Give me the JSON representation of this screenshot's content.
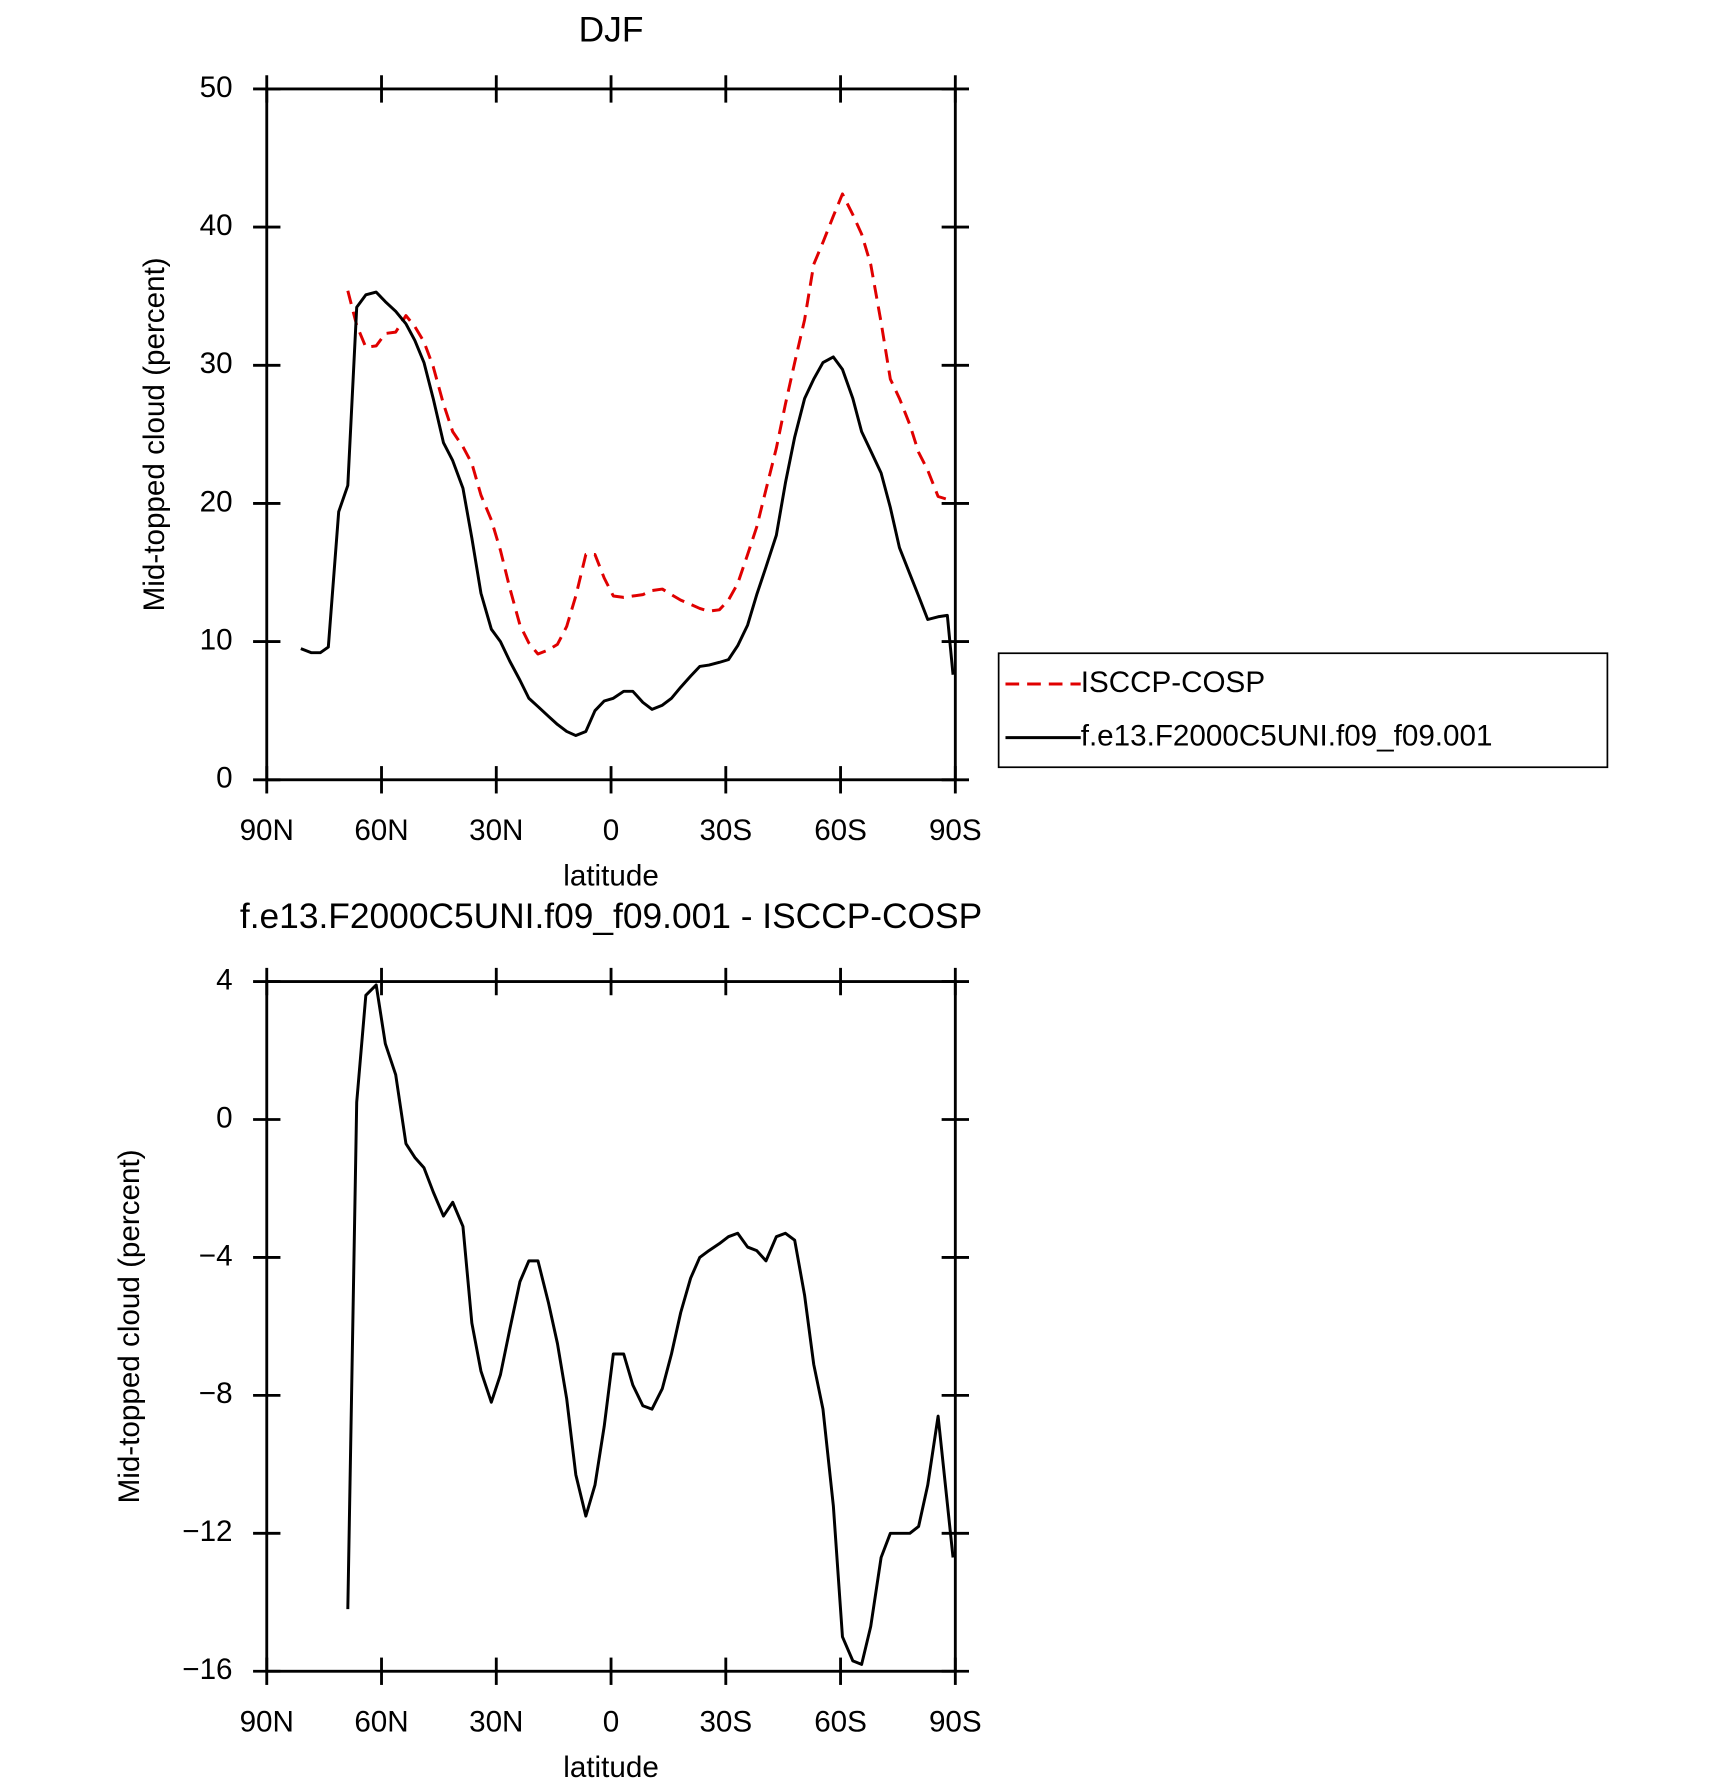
{
  "chart_data": [
    {
      "type": "line",
      "title": "DJF",
      "x_label": "latitude",
      "y_label": "Mid-topped cloud (percent)",
      "xlim": [
        90,
        -90
      ],
      "xticks": [
        {
          "value": 90,
          "label": "90N"
        },
        {
          "value": 60,
          "label": "60N"
        },
        {
          "value": 30,
          "label": "30N"
        },
        0,
        {
          "value": -30,
          "label": "30S"
        },
        {
          "value": -60,
          "label": "60S"
        },
        {
          "value": -90,
          "label": "90S"
        }
      ],
      "ylim": [
        0,
        50
      ],
      "yticks": [
        0,
        10,
        20,
        30,
        40,
        50
      ],
      "legend": "outside-right",
      "x": [
        81.1,
        78.4,
        76.0,
        73.9,
        71.2,
        68.8,
        66.5,
        64.1,
        61.4,
        59.0,
        56.3,
        53.6,
        51.3,
        48.9,
        46.5,
        43.8,
        41.4,
        38.7,
        36.4,
        34.0,
        31.3,
        28.9,
        26.5,
        23.8,
        21.5,
        19.1,
        16.4,
        14.0,
        11.6,
        9.2,
        6.6,
        4.2,
        1.8,
        -0.6,
        -3.3,
        -5.7,
        -8.3,
        -10.7,
        -13.4,
        -15.8,
        -18.2,
        -20.8,
        -23.2,
        -25.6,
        -28.3,
        -30.7,
        -33.1,
        -35.7,
        -38.1,
        -40.5,
        -43.2,
        -45.6,
        -48.0,
        -50.6,
        -53.0,
        -55.4,
        -58.1,
        -60.5,
        -63.2,
        -65.5,
        -67.9,
        -70.6,
        -73.0,
        -75.4,
        -78.1,
        -80.4,
        -82.8,
        -85.5,
        -87.9,
        -89.4
      ],
      "series": [
        {
          "name": "ISCCP-COSP",
          "color": "#e00000",
          "dash": true,
          "values": [
            null,
            null,
            null,
            null,
            null,
            35.4,
            32.9,
            31.3,
            31.4,
            32.3,
            32.4,
            33.6,
            32.8,
            31.7,
            29.9,
            27.2,
            25.2,
            24.1,
            22.9,
            20.6,
            18.8,
            16.6,
            13.9,
            11.2,
            9.9,
            9.1,
            9.4,
            9.8,
            11.1,
            13.3,
            16.3,
            16.3,
            14.6,
            13.3,
            13.2,
            13.3,
            13.4,
            13.7,
            13.8,
            13.4,
            13.0,
            12.7,
            12.4,
            12.2,
            12.3,
            13.0,
            14.2,
            16.3,
            18.3,
            21.0,
            24.0,
            27.2,
            30.2,
            33.3,
            37.3,
            38.9,
            40.8,
            42.4,
            40.9,
            39.5,
            37.3,
            33.1,
            29.0,
            27.6,
            25.7,
            23.7,
            22.4,
            20.5,
            20.3,
            20.1
          ]
        },
        {
          "name": "f.e13.F2000C5UNI.f09_f09.001",
          "color": "#000000",
          "dash": false,
          "values": [
            9.5,
            9.2,
            9.2,
            9.6,
            19.4,
            21.3,
            34.2,
            35.1,
            35.3,
            34.6,
            33.9,
            33.0,
            31.8,
            30.2,
            27.6,
            24.4,
            23.1,
            21.1,
            17.5,
            13.5,
            10.9,
            10.0,
            8.6,
            7.2,
            5.9,
            5.3,
            4.6,
            4.0,
            3.5,
            3.2,
            3.5,
            5.0,
            5.7,
            5.9,
            6.4,
            6.4,
            5.6,
            5.1,
            5.4,
            5.9,
            6.7,
            7.5,
            8.2,
            8.3,
            8.5,
            8.7,
            9.7,
            11.2,
            13.4,
            15.4,
            17.7,
            21.5,
            24.8,
            27.6,
            29.0,
            30.2,
            30.6,
            29.7,
            27.6,
            25.2,
            23.8,
            22.2,
            19.7,
            16.8,
            14.9,
            13.3,
            11.6,
            11.8,
            11.9,
            7.6
          ]
        }
      ]
    },
    {
      "type": "line",
      "title": "f.e13.F2000C5UNI.f09_f09.001 - ISCCP-COSP",
      "x_label": "latitude",
      "y_label": "Mid-topped cloud (percent)",
      "xlim": [
        90,
        -90
      ],
      "xticks": [
        {
          "value": 90,
          "label": "90N"
        },
        {
          "value": 60,
          "label": "60N"
        },
        {
          "value": 30,
          "label": "30N"
        },
        0,
        {
          "value": -30,
          "label": "30S"
        },
        {
          "value": -60,
          "label": "60S"
        },
        {
          "value": -90,
          "label": "90S"
        }
      ],
      "ylim": [
        -16,
        4
      ],
      "yticks": [
        {
          "value": -16,
          "label": "−16"
        },
        {
          "value": -12,
          "label": "−12"
        },
        {
          "value": -8,
          "label": "−8"
        },
        {
          "value": -4,
          "label": "−4"
        },
        0,
        4
      ],
      "color": "#000000",
      "x": [
        68.8,
        66.5,
        64.1,
        61.4,
        59.0,
        56.3,
        53.6,
        51.3,
        48.9,
        46.5,
        43.8,
        41.4,
        38.7,
        36.4,
        34.0,
        31.3,
        28.9,
        26.5,
        23.8,
        21.5,
        19.1,
        16.4,
        14.0,
        11.6,
        9.2,
        6.6,
        4.2,
        1.8,
        -0.6,
        -3.3,
        -5.7,
        -8.3,
        -10.7,
        -13.4,
        -15.8,
        -18.2,
        -20.8,
        -23.2,
        -25.6,
        -28.3,
        -30.7,
        -33.1,
        -35.7,
        -38.1,
        -40.5,
        -43.2,
        -45.6,
        -48.0,
        -50.6,
        -53.0,
        -55.4,
        -58.1,
        -60.5,
        -63.2,
        -65.5,
        -67.9,
        -70.6,
        -73.0,
        -75.4,
        -78.1,
        -80.4,
        -82.8,
        -85.5,
        -89.4
      ],
      "values": [
        -14.2,
        0.5,
        3.6,
        3.9,
        2.2,
        1.3,
        -0.7,
        -1.1,
        -1.4,
        -2.1,
        -2.8,
        -2.4,
        -3.1,
        -5.9,
        -7.3,
        -8.2,
        -7.4,
        -6.1,
        -4.7,
        -4.1,
        -4.1,
        -5.3,
        -6.5,
        -8.1,
        -10.3,
        -11.5,
        -10.6,
        -8.9,
        -6.8,
        -6.8,
        -7.7,
        -8.3,
        -8.4,
        -7.8,
        -6.8,
        -5.6,
        -4.6,
        -4.0,
        -3.8,
        -3.6,
        -3.4,
        -3.3,
        -3.7,
        -3.8,
        -4.1,
        -3.4,
        -3.3,
        -3.5,
        -5.1,
        -7.1,
        -8.4,
        -11.2,
        -15.0,
        -15.7,
        -15.8,
        -14.7,
        -12.7,
        -12.0,
        -12.0,
        -12.0,
        -11.8,
        -10.6,
        -8.6,
        -12.7
      ]
    }
  ]
}
